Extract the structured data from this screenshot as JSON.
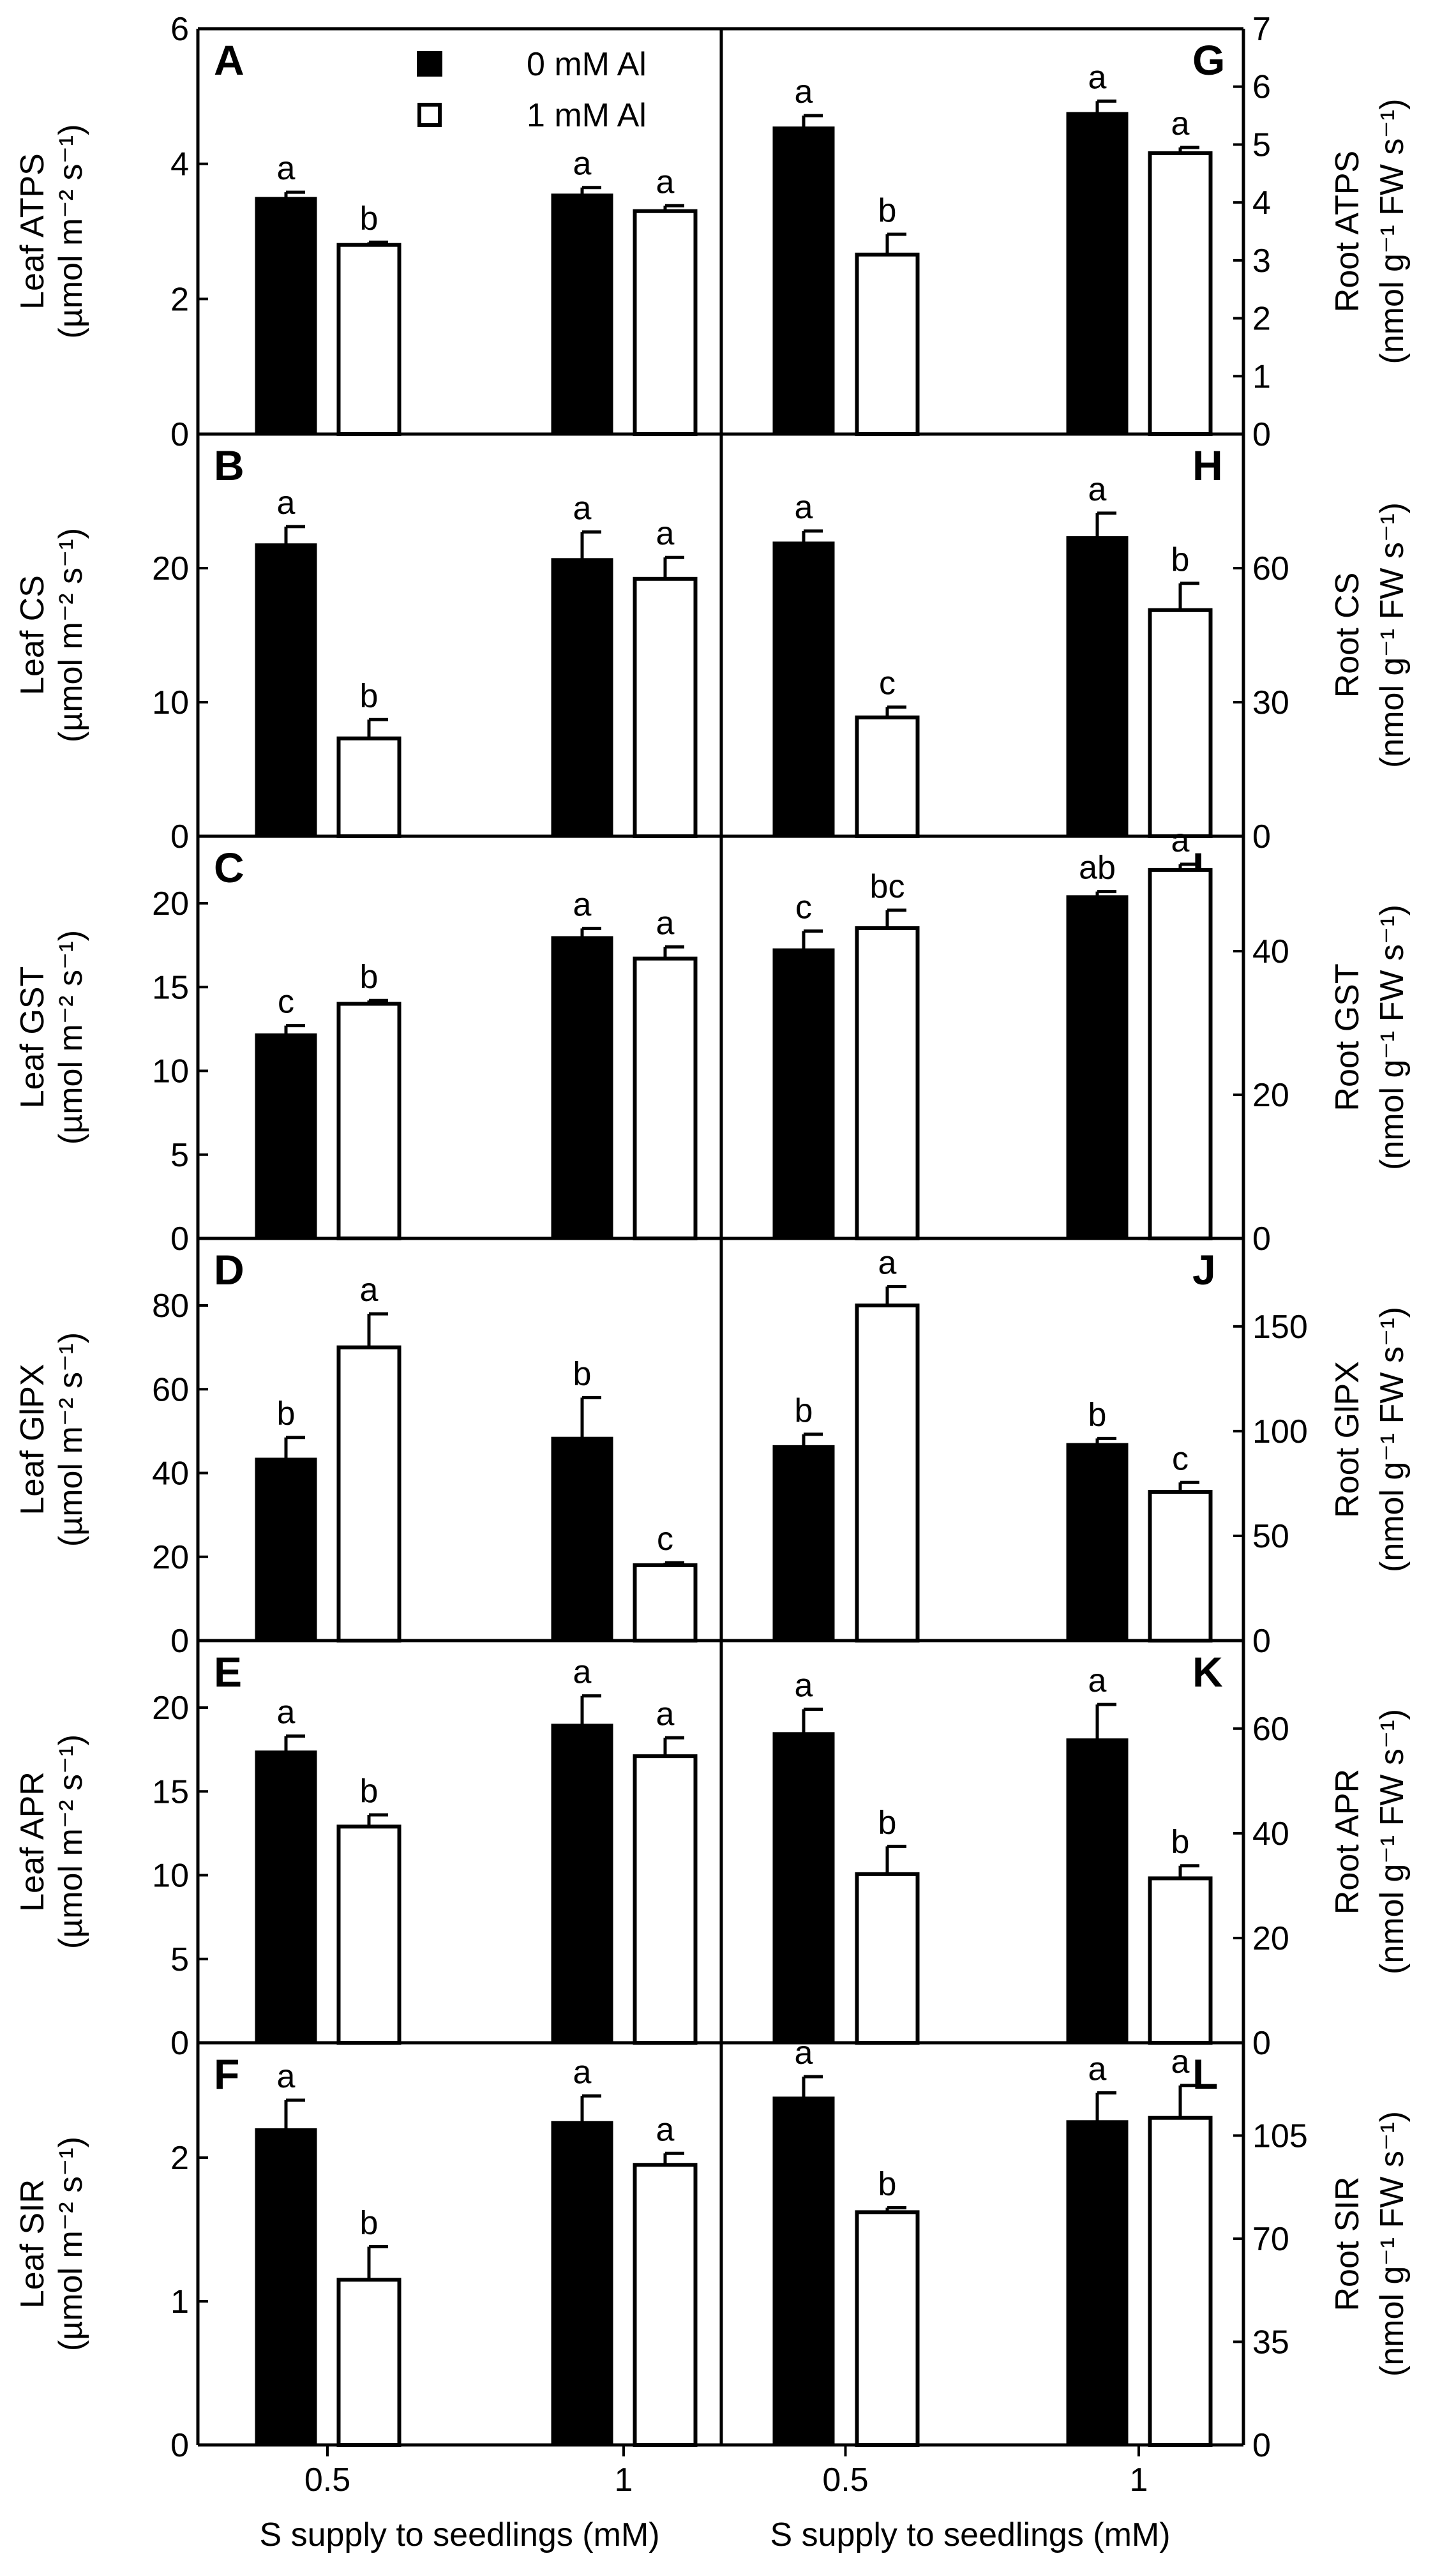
{
  "figure": {
    "xlabel": "S supply to seedlings (mM)",
    "categories": [
      "0.5",
      "1"
    ],
    "legend": [
      {
        "label": "0 mM Al",
        "fill": "#000000"
      },
      {
        "label": "1 mM Al",
        "fill": "#ffffff"
      }
    ]
  },
  "chart_data": [
    {
      "panel": "A",
      "type": "bar",
      "side": "left",
      "ylabel": [
        "Leaf ATPS",
        "(µmol m⁻² s⁻¹)"
      ],
      "ylim": [
        0,
        6
      ],
      "yticks": [
        0,
        2,
        4,
        6
      ],
      "series": [
        {
          "name": "0 mM Al",
          "values": [
            3.5,
            3.55
          ],
          "errors": [
            0.08,
            0.1
          ]
        },
        {
          "name": "1 mM Al",
          "values": [
            2.8,
            3.3
          ],
          "errors": [
            0.04,
            0.08
          ]
        }
      ],
      "letters": [
        [
          "a",
          "b"
        ],
        [
          "a",
          "a"
        ]
      ]
    },
    {
      "panel": "B",
      "type": "bar",
      "side": "left",
      "ylabel": [
        "Leaf CS",
        "(µmol m⁻² s⁻¹)"
      ],
      "ylim": [
        0,
        30
      ],
      "yticks": [
        0,
        10,
        20
      ],
      "series": [
        {
          "name": "0 mM Al",
          "values": [
            21.8,
            20.7
          ],
          "errors": [
            1.3,
            2.0
          ]
        },
        {
          "name": "1 mM Al",
          "values": [
            7.3,
            19.2
          ],
          "errors": [
            1.4,
            1.6
          ]
        }
      ],
      "letters": [
        [
          "a",
          "b"
        ],
        [
          "a",
          "a"
        ]
      ]
    },
    {
      "panel": "C",
      "type": "bar",
      "side": "left",
      "ylabel": [
        "Leaf GST",
        "(µmol m⁻² s⁻¹)"
      ],
      "ylim": [
        0,
        24
      ],
      "yticks": [
        0,
        5,
        10,
        15,
        20
      ],
      "series": [
        {
          "name": "0 mM Al",
          "values": [
            12.2,
            18.0
          ],
          "errors": [
            0.5,
            0.5
          ]
        },
        {
          "name": "1 mM Al",
          "values": [
            14.0,
            16.7
          ],
          "errors": [
            0.2,
            0.7
          ]
        }
      ],
      "letters": [
        [
          "c",
          "b"
        ],
        [
          "a",
          "a"
        ]
      ]
    },
    {
      "panel": "D",
      "type": "bar",
      "side": "left",
      "ylabel": [
        "Leaf GlPX",
        "(µmol m⁻² s⁻¹)"
      ],
      "ylim": [
        0,
        96
      ],
      "yticks": [
        0,
        20,
        40,
        60,
        80
      ],
      "series": [
        {
          "name": "0 mM Al",
          "values": [
            43.5,
            48.5
          ],
          "errors": [
            5.0,
            9.5
          ]
        },
        {
          "name": "1 mM Al",
          "values": [
            70.0,
            18.0
          ],
          "errors": [
            8.0,
            0.6
          ]
        }
      ],
      "letters": [
        [
          "b",
          "a"
        ],
        [
          "b",
          "c"
        ]
      ]
    },
    {
      "panel": "E",
      "type": "bar",
      "side": "left",
      "ylabel": [
        "Leaf APR",
        "(µmol m⁻² s⁻¹)"
      ],
      "ylim": [
        0,
        24
      ],
      "yticks": [
        0,
        5,
        10,
        15,
        20
      ],
      "series": [
        {
          "name": "0 mM Al",
          "values": [
            17.4,
            19.0
          ],
          "errors": [
            0.9,
            1.7
          ]
        },
        {
          "name": "1 mM Al",
          "values": [
            12.9,
            17.1
          ],
          "errors": [
            0.7,
            1.1
          ]
        }
      ],
      "letters": [
        [
          "a",
          "b"
        ],
        [
          "a",
          "a"
        ]
      ]
    },
    {
      "panel": "F",
      "type": "bar",
      "side": "left",
      "ylabel": [
        "Leaf SIR",
        "(µmol m⁻² s⁻¹)"
      ],
      "ylim": [
        0,
        2.8
      ],
      "yticks": [
        0,
        1,
        2
      ],
      "series": [
        {
          "name": "0 mM Al",
          "values": [
            2.2,
            2.25
          ],
          "errors": [
            0.2,
            0.18
          ]
        },
        {
          "name": "1 mM Al",
          "values": [
            1.15,
            1.95
          ],
          "errors": [
            0.23,
            0.08
          ]
        }
      ],
      "letters": [
        [
          "a",
          "b"
        ],
        [
          "a",
          "a"
        ]
      ]
    },
    {
      "panel": "G",
      "type": "bar",
      "side": "right",
      "ylabel": [
        "Root ATPS",
        "(nmol g⁻¹ FW s⁻¹)"
      ],
      "ylim": [
        0,
        7
      ],
      "yticks": [
        0,
        1,
        2,
        3,
        4,
        5,
        6,
        7
      ],
      "series": [
        {
          "name": "0 mM Al",
          "values": [
            5.3,
            5.55
          ],
          "errors": [
            0.2,
            0.2
          ]
        },
        {
          "name": "1 mM Al",
          "values": [
            3.1,
            4.85
          ],
          "errors": [
            0.35,
            0.1
          ]
        }
      ],
      "letters": [
        [
          "a",
          "b"
        ],
        [
          "a",
          "a"
        ]
      ]
    },
    {
      "panel": "H",
      "type": "bar",
      "side": "right",
      "ylabel": [
        "Root CS",
        "(nmol g⁻¹ FW s⁻¹)"
      ],
      "ylim": [
        0,
        90
      ],
      "yticks": [
        0,
        30,
        60
      ],
      "series": [
        {
          "name": "0 mM Al",
          "values": [
            65.8,
            67.0
          ],
          "errors": [
            2.5,
            5.3
          ]
        },
        {
          "name": "1 mM Al",
          "values": [
            26.6,
            50.6
          ],
          "errors": [
            2.3,
            6.0
          ]
        }
      ],
      "letters": [
        [
          "a",
          "c"
        ],
        [
          "a",
          "b"
        ]
      ]
    },
    {
      "panel": "I",
      "type": "bar",
      "side": "right",
      "ylabel": [
        "Root GST",
        "(nmol g⁻¹ FW s⁻¹)"
      ],
      "ylim": [
        0,
        56
      ],
      "yticks": [
        0,
        20,
        40
      ],
      "series": [
        {
          "name": "0 mM Al",
          "values": [
            40.3,
            47.7
          ],
          "errors": [
            2.5,
            0.6
          ]
        },
        {
          "name": "1 mM Al",
          "values": [
            43.2,
            51.3
          ],
          "errors": [
            2.5,
            0.8
          ]
        }
      ],
      "letters": [
        [
          "c",
          "bc"
        ],
        [
          "ab",
          "a"
        ]
      ]
    },
    {
      "panel": "J",
      "type": "bar",
      "side": "right",
      "ylabel": [
        "Root GlPX",
        "(nmol g⁻¹ FW s⁻¹)"
      ],
      "ylim": [
        0,
        192
      ],
      "yticks": [
        0,
        50,
        100,
        150
      ],
      "series": [
        {
          "name": "0 mM Al",
          "values": [
            93,
            94
          ],
          "errors": [
            5.5,
            2.5
          ]
        },
        {
          "name": "1 mM Al",
          "values": [
            160,
            71
          ],
          "errors": [
            9.0,
            4.5
          ]
        }
      ],
      "letters": [
        [
          "b",
          "a"
        ],
        [
          "b",
          "c"
        ]
      ]
    },
    {
      "panel": "K",
      "type": "bar",
      "side": "right",
      "ylabel": [
        "Root APR",
        "(nmol g⁻¹ FW s⁻¹)"
      ],
      "ylim": [
        0,
        76.8
      ],
      "yticks": [
        0,
        20,
        40,
        60
      ],
      "series": [
        {
          "name": "0 mM Al",
          "values": [
            59.2,
            58.0
          ],
          "errors": [
            4.5,
            6.6
          ]
        },
        {
          "name": "1 mM Al",
          "values": [
            32.2,
            31.4
          ],
          "errors": [
            5.3,
            2.4
          ]
        }
      ],
      "letters": [
        [
          "a",
          "b"
        ],
        [
          "a",
          "b"
        ]
      ]
    },
    {
      "panel": "L",
      "type": "bar",
      "side": "right",
      "ylabel": [
        "Root SIR",
        "(nmol g⁻¹ FW s⁻¹)"
      ],
      "ylim": [
        0,
        136.5
      ],
      "yticks": [
        0,
        35,
        70,
        105
      ],
      "series": [
        {
          "name": "0 mM Al",
          "values": [
            118,
            110
          ],
          "errors": [
            7.0,
            9.5
          ]
        },
        {
          "name": "1 mM Al",
          "values": [
            79,
            111
          ],
          "errors": [
            1.5,
            11.0
          ]
        }
      ],
      "letters": [
        [
          "a",
          "b"
        ],
        [
          "a",
          "a"
        ]
      ]
    }
  ]
}
